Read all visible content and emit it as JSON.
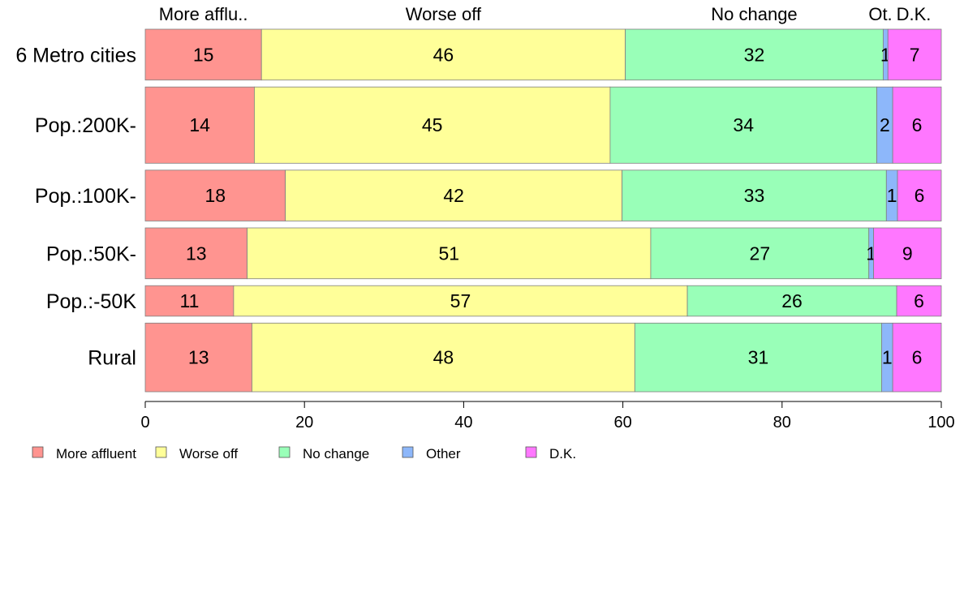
{
  "chart_data": {
    "type": "bar",
    "orientation": "horizontal",
    "stacked": true,
    "categories": [
      "6 Metro cities",
      "Pop.:200K-",
      "Pop.:100K-",
      "Pop.:50K-",
      "Pop.:-50K",
      "Rural"
    ],
    "series": [
      {
        "name": "More affluent",
        "values": [
          14.6,
          13.7,
          17.6,
          12.8,
          11.1,
          13.4
        ]
      },
      {
        "name": "Worse off",
        "values": [
          45.7,
          44.7,
          42.3,
          50.7,
          57.0,
          48.1
        ]
      },
      {
        "name": "No change",
        "values": [
          32.4,
          33.5,
          33.2,
          27.4,
          26.3,
          31.0
        ]
      },
      {
        "name": "Other",
        "values": [
          0.6,
          2.0,
          1.4,
          0.6,
          0.0,
          1.4
        ]
      },
      {
        "name": "D.K.",
        "values": [
          6.7,
          6.1,
          5.5,
          8.5,
          5.6,
          6.1
        ]
      }
    ],
    "data_labels": [
      [
        "15",
        "46",
        "32",
        "1",
        "7"
      ],
      [
        "14",
        "45",
        "34",
        "2",
        "6"
      ],
      [
        "18",
        "42",
        "33",
        "1",
        "6"
      ],
      [
        "13",
        "51",
        "27",
        "1",
        "9"
      ],
      [
        "11",
        "57",
        "26",
        "",
        "6"
      ],
      [
        "13",
        "48",
        "31",
        "1",
        "6"
      ]
    ],
    "column_headers": [
      "More afflu..",
      "Worse off",
      "No change",
      "Ot.",
      "D.K."
    ],
    "xlim": [
      0,
      100
    ],
    "xticks": [
      "0",
      "20",
      "40",
      "60",
      "80",
      "100"
    ],
    "legend_labels": [
      "More affluent",
      "Worse off",
      "No change",
      "Other",
      "D.K."
    ],
    "legend_position": "bottom-left",
    "grid": false,
    "bar_height_weights": [
      1,
      1.5,
      1,
      1,
      0.6,
      1.35
    ],
    "colors": [
      "#ff9490",
      "#ffff99",
      "#99ffb8",
      "#8db7fa",
      "#ff77ff"
    ],
    "border_color": "#7f7f7f"
  }
}
